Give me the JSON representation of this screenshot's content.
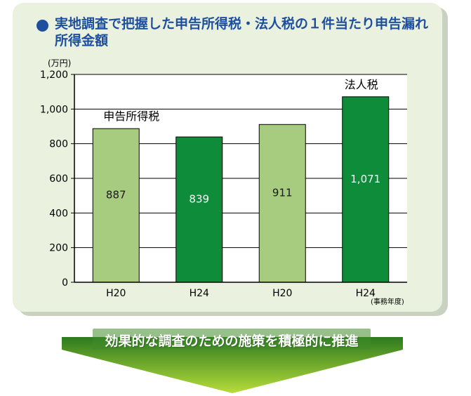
{
  "title": "実地調査で把握した申告所得税・法人税の１件当たり申告漏れ所得金額",
  "unit_label": "(万円)",
  "xaxis_note": "(事務年度)",
  "banner": "効果的な調査のための施策を積極的に推進",
  "colors": {
    "bar_light": "#a8cc7f",
    "bar_dark": "#0e8c3a",
    "title": "#1d4f9e",
    "panel": "#eaf2df",
    "arrow_top": "#2d7a1f",
    "arrow_bottom": "#b6dc3a"
  },
  "chart_data": {
    "type": "bar",
    "categories": [
      "H20",
      "H24",
      "H20",
      "H24"
    ],
    "values": [
      887,
      839,
      911,
      1071
    ],
    "value_labels": [
      "887",
      "839",
      "911",
      "1,071"
    ],
    "bar_styles": [
      "light",
      "dark",
      "light",
      "dark"
    ],
    "group_labels": [
      {
        "text": "申告所得税",
        "over_index": 0
      },
      {
        "text": "法人税",
        "over_index": 3
      }
    ],
    "ylim": [
      0,
      1200
    ],
    "yticks": [
      0,
      200,
      400,
      600,
      800,
      1000,
      1200
    ],
    "ytick_labels": [
      "0",
      "200",
      "400",
      "600",
      "800",
      "1,000",
      "1,200"
    ],
    "grid": true,
    "xlabel": "",
    "ylabel": ""
  }
}
